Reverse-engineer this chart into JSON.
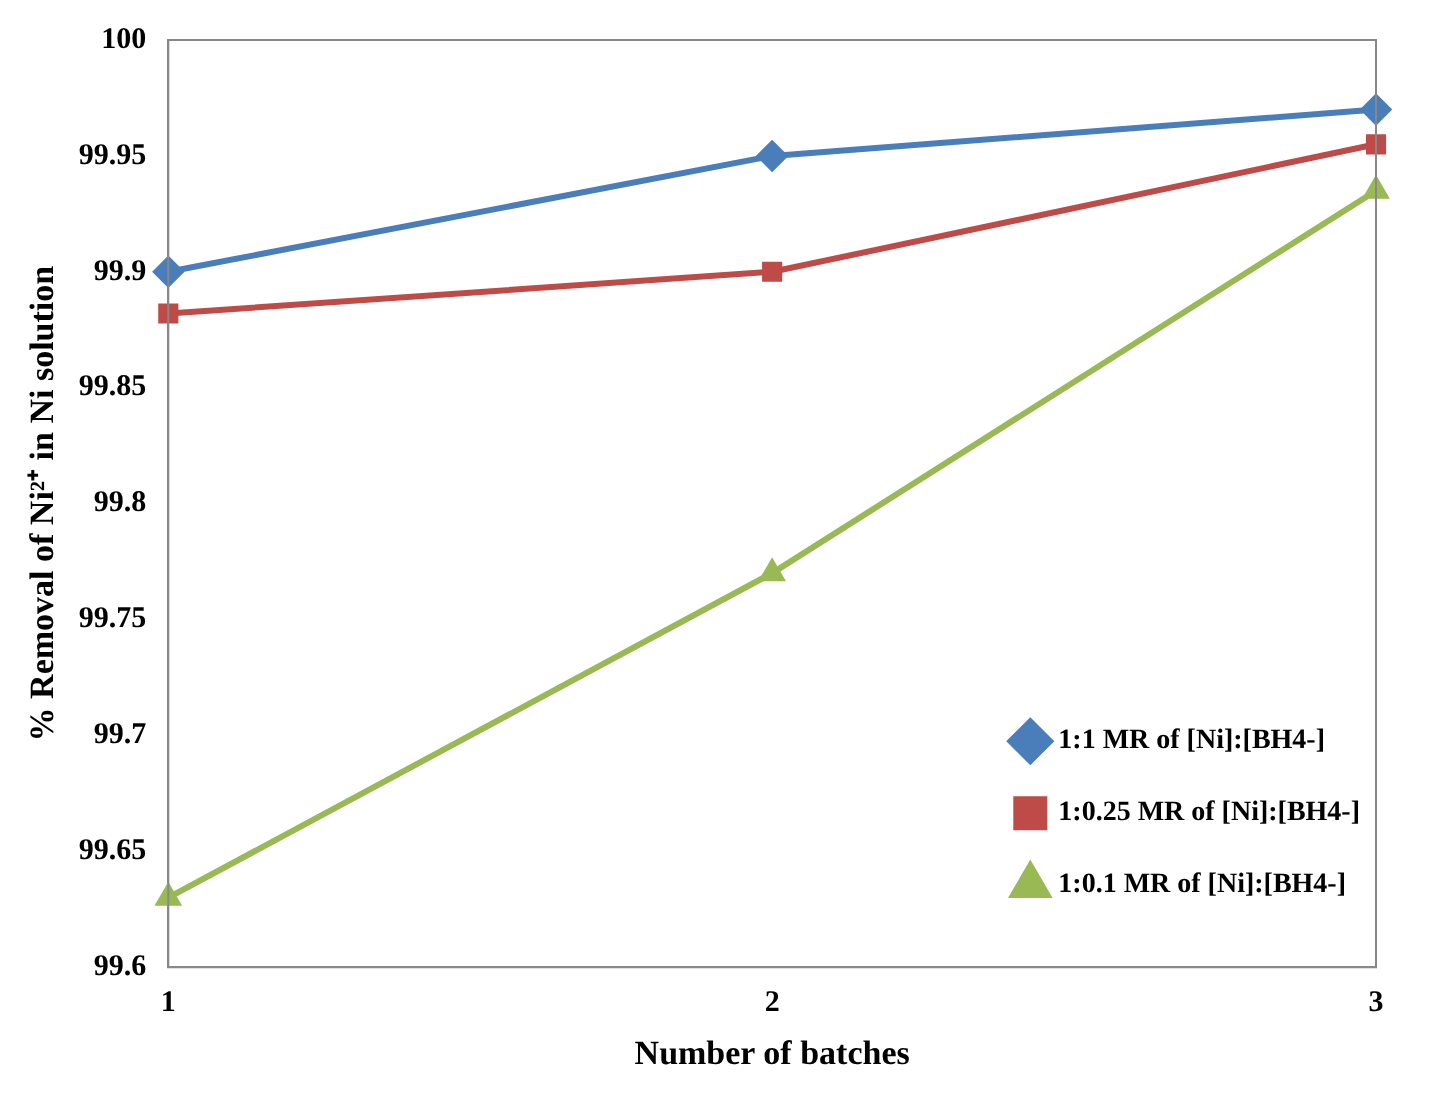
{
  "chart_data": {
    "type": "line",
    "xlabel": "Number of batches",
    "ylabel": "% Removal of Ni²⁺ in Ni solution",
    "categories": [
      "1",
      "2",
      "3"
    ],
    "series": [
      {
        "name": "1:1 MR of [Ni]:[BH4-]",
        "color": "#4a7ebb",
        "marker": "diamond",
        "values": [
          99.9,
          99.95,
          99.97
        ]
      },
      {
        "name": "1:0.25 MR of [Ni]:[BH4-]",
        "color": "#be4b48",
        "marker": "square",
        "values": [
          99.882,
          99.9,
          99.955
        ]
      },
      {
        "name": "1:0.1 MR of [Ni]:[BH4-]",
        "color": "#98b954",
        "marker": "triangle",
        "values": [
          99.63,
          99.77,
          99.935
        ]
      }
    ],
    "ylim": [
      99.6,
      100
    ],
    "yticks": [
      99.6,
      99.65,
      99.7,
      99.75,
      99.8,
      99.85,
      99.9,
      99.95,
      100
    ],
    "grid": false,
    "legend": "bottom right",
    "line_style": "solid"
  }
}
